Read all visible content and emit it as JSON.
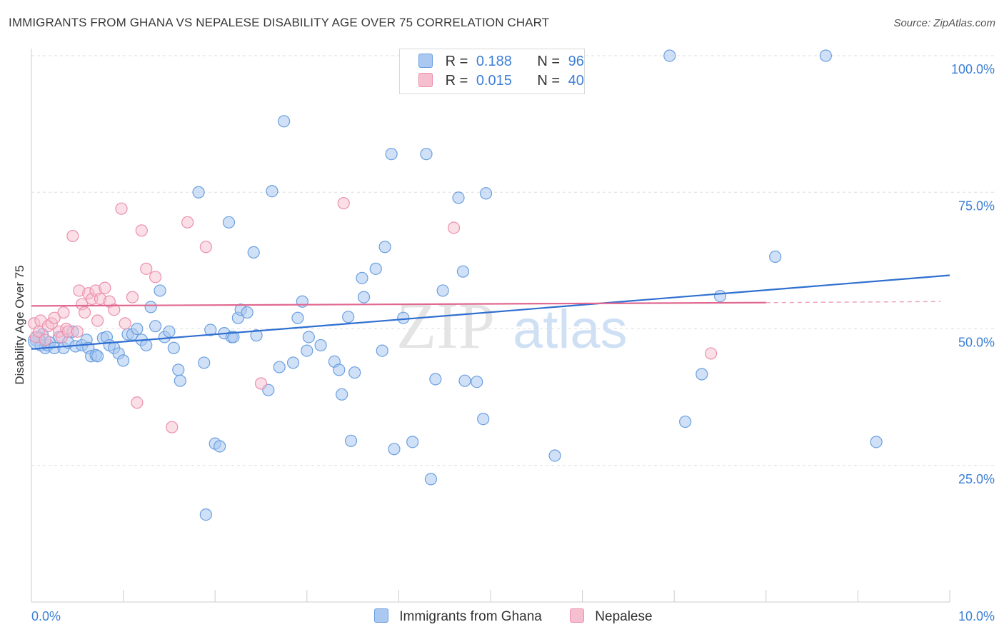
{
  "header": {
    "title": "IMMIGRANTS FROM GHANA VS NEPALESE DISABILITY AGE OVER 75 CORRELATION CHART",
    "source": "Source: ZipAtlas.com"
  },
  "watermark": {
    "zip": "ZIP",
    "atlas": "atlas"
  },
  "legend_top": {
    "rows": [
      {
        "r_label": "R =",
        "r_value": "0.188",
        "n_label": "N =",
        "n_value": "96"
      },
      {
        "r_label": "R =",
        "r_value": "0.015",
        "n_label": "N =",
        "n_value": "40"
      }
    ]
  },
  "legend_bottom": {
    "items": [
      "Immigrants from Ghana",
      "Nepalese"
    ]
  },
  "chart_data": {
    "type": "scatter",
    "title": "IMMIGRANTS FROM GHANA VS NEPALESE DISABILITY AGE OVER 75 CORRELATION CHART",
    "xlabel": "",
    "ylabel": "Disability Age Over 75",
    "xlim": [
      0,
      10
    ],
    "ylim": [
      0,
      102
    ],
    "x_tick_labels": [
      "0.0%",
      "10.0%"
    ],
    "y_ticks": [
      25,
      50,
      75,
      100
    ],
    "y_tick_labels": [
      "25.0%",
      "50.0%",
      "75.0%",
      "100.0%"
    ],
    "grid": true,
    "colors": {
      "ghana_fill": "#aac8f0",
      "ghana_stroke": "#6a9fe0",
      "ghana_line": "#2f6fd0",
      "nepal_fill": "#f6bfd0",
      "nepal_stroke": "#ec8fae",
      "nepal_line": "#e0688f",
      "axis_text": "#3d7fd6",
      "grid": "#dedede"
    },
    "series": [
      {
        "name": "Immigrants from Ghana",
        "R": 0.188,
        "N": 96,
        "trend": {
          "x": [
            0,
            10
          ],
          "y": [
            46.3,
            59.8
          ]
        },
        "points": [
          [
            0.05,
            47.9
          ],
          [
            0.08,
            48.5
          ],
          [
            0.1,
            47.0
          ],
          [
            0.12,
            49.0
          ],
          [
            0.15,
            46.5
          ],
          [
            0.18,
            47.0
          ],
          [
            0.2,
            47.5
          ],
          [
            0.25,
            46.5
          ],
          [
            0.3,
            48.5
          ],
          [
            0.35,
            46.5
          ],
          [
            0.4,
            47.5
          ],
          [
            0.45,
            49.5
          ],
          [
            0.48,
            46.8
          ],
          [
            0.55,
            47.0
          ],
          [
            0.6,
            48.0
          ],
          [
            0.62,
            46.5
          ],
          [
            0.65,
            45.0
          ],
          [
            0.7,
            45.2
          ],
          [
            0.72,
            45.0
          ],
          [
            0.78,
            48.3
          ],
          [
            0.82,
            48.5
          ],
          [
            0.85,
            47.0
          ],
          [
            0.9,
            46.5
          ],
          [
            0.95,
            45.5
          ],
          [
            1.0,
            44.2
          ],
          [
            1.05,
            49.0
          ],
          [
            1.1,
            49.0
          ],
          [
            1.15,
            50.0
          ],
          [
            1.2,
            48.0
          ],
          [
            1.25,
            47.0
          ],
          [
            1.3,
            54.0
          ],
          [
            1.35,
            50.5
          ],
          [
            1.4,
            57.0
          ],
          [
            1.45,
            48.5
          ],
          [
            1.5,
            49.5
          ],
          [
            1.55,
            46.5
          ],
          [
            1.6,
            42.5
          ],
          [
            1.62,
            40.5
          ],
          [
            1.82,
            75.0
          ],
          [
            1.88,
            43.8
          ],
          [
            1.9,
            16.0
          ],
          [
            1.95,
            49.8
          ],
          [
            2.0,
            29.0
          ],
          [
            2.05,
            28.5
          ],
          [
            2.1,
            49.2
          ],
          [
            2.15,
            69.5
          ],
          [
            2.18,
            48.5
          ],
          [
            2.2,
            48.5
          ],
          [
            2.25,
            52.0
          ],
          [
            2.28,
            53.5
          ],
          [
            2.35,
            53.0
          ],
          [
            2.42,
            64.0
          ],
          [
            2.45,
            48.8
          ],
          [
            2.58,
            38.8
          ],
          [
            2.62,
            75.2
          ],
          [
            2.7,
            43.0
          ],
          [
            2.75,
            88.0
          ],
          [
            2.85,
            43.8
          ],
          [
            2.9,
            52.0
          ],
          [
            2.95,
            55.0
          ],
          [
            3.0,
            46.0
          ],
          [
            3.02,
            48.5
          ],
          [
            3.15,
            47.0
          ],
          [
            3.3,
            44.0
          ],
          [
            3.35,
            42.5
          ],
          [
            3.38,
            38.0
          ],
          [
            3.45,
            52.2
          ],
          [
            3.48,
            29.5
          ],
          [
            3.52,
            42.0
          ],
          [
            3.6,
            59.3
          ],
          [
            3.62,
            55.8
          ],
          [
            3.75,
            61.0
          ],
          [
            3.82,
            46.0
          ],
          [
            3.85,
            65.0
          ],
          [
            3.92,
            82.0
          ],
          [
            3.95,
            28.0
          ],
          [
            4.05,
            52.0
          ],
          [
            4.15,
            29.3
          ],
          [
            4.3,
            82.0
          ],
          [
            4.35,
            22.5
          ],
          [
            4.4,
            40.8
          ],
          [
            4.48,
            57.0
          ],
          [
            4.65,
            74.0
          ],
          [
            4.7,
            60.5
          ],
          [
            4.72,
            40.5
          ],
          [
            4.85,
            40.3
          ],
          [
            4.92,
            33.5
          ],
          [
            4.95,
            74.8
          ],
          [
            5.7,
            26.8
          ],
          [
            6.95,
            100.0
          ],
          [
            7.12,
            33.0
          ],
          [
            7.3,
            41.7
          ],
          [
            7.5,
            56.0
          ],
          [
            8.1,
            63.2
          ],
          [
            8.65,
            100.0
          ],
          [
            9.2,
            29.3
          ]
        ]
      },
      {
        "name": "Nepalese",
        "R": 0.015,
        "N": 40,
        "trend": {
          "x": [
            0,
            8.0
          ],
          "y": [
            54.2,
            54.8
          ]
        },
        "trend_dashed": {
          "x": [
            8.0,
            9.9
          ],
          "y": [
            54.8,
            55.0
          ]
        },
        "points": [
          [
            0.03,
            51.0
          ],
          [
            0.05,
            48.5
          ],
          [
            0.08,
            49.5
          ],
          [
            0.1,
            51.5
          ],
          [
            0.15,
            48.0
          ],
          [
            0.18,
            50.5
          ],
          [
            0.22,
            51.0
          ],
          [
            0.25,
            52.0
          ],
          [
            0.3,
            49.5
          ],
          [
            0.33,
            48.5
          ],
          [
            0.35,
            53.0
          ],
          [
            0.38,
            50.0
          ],
          [
            0.4,
            49.5
          ],
          [
            0.45,
            67.0
          ],
          [
            0.5,
            49.5
          ],
          [
            0.52,
            57.0
          ],
          [
            0.55,
            54.5
          ],
          [
            0.58,
            53.0
          ],
          [
            0.62,
            56.5
          ],
          [
            0.66,
            55.5
          ],
          [
            0.7,
            57.0
          ],
          [
            0.72,
            51.5
          ],
          [
            0.75,
            55.5
          ],
          [
            0.8,
            57.5
          ],
          [
            0.85,
            55.0
          ],
          [
            0.9,
            53.5
          ],
          [
            0.98,
            72.0
          ],
          [
            1.02,
            51.0
          ],
          [
            1.1,
            55.8
          ],
          [
            1.15,
            36.5
          ],
          [
            1.2,
            68.0
          ],
          [
            1.25,
            61.0
          ],
          [
            1.35,
            59.5
          ],
          [
            1.53,
            32.0
          ],
          [
            1.7,
            69.5
          ],
          [
            1.9,
            65.0
          ],
          [
            2.5,
            40.0
          ],
          [
            3.4,
            73.0
          ],
          [
            4.6,
            68.5
          ],
          [
            7.4,
            45.5
          ]
        ]
      }
    ]
  }
}
